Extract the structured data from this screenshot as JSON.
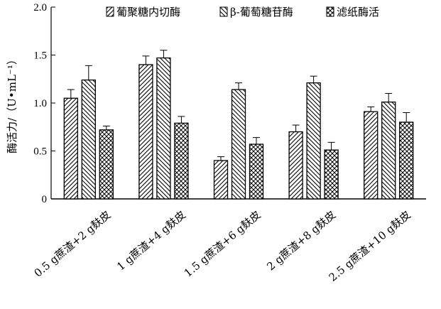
{
  "chart_data": {
    "type": "bar",
    "categories": [
      "0.5 g蔗渣+2 g麸皮",
      "1 g蔗渣+4 g麸皮",
      "1.5 g蔗渣+6 g麸皮",
      "2 g蔗渣+8 g麸皮",
      "2.5 g蔗渣+10 g麸皮"
    ],
    "series": [
      {
        "name": "葡聚糖内切酶",
        "values": [
          1.05,
          1.4,
          0.4,
          0.7,
          0.91
        ],
        "errors": [
          0.09,
          0.09,
          0.04,
          0.07,
          0.05
        ],
        "pattern": "diag-right"
      },
      {
        "name": "β-葡萄糖苷酶",
        "values": [
          1.24,
          1.47,
          1.14,
          1.21,
          1.01
        ],
        "errors": [
          0.15,
          0.08,
          0.07,
          0.07,
          0.09
        ],
        "pattern": "diag-left"
      },
      {
        "name": "滤纸酶活",
        "values": [
          0.72,
          0.79,
          0.57,
          0.51,
          0.8
        ],
        "errors": [
          0.04,
          0.07,
          0.07,
          0.08,
          0.1
        ],
        "pattern": "crosshatch"
      }
    ],
    "ylabel": "酶活力/（U•mL⁻¹）",
    "xlabel": "",
    "ylim": [
      0,
      2.0
    ],
    "yticks": [
      "0",
      "0.5",
      "1.0",
      "1.5",
      "2.0"
    ],
    "legend_position": "top-right",
    "grid": false
  }
}
